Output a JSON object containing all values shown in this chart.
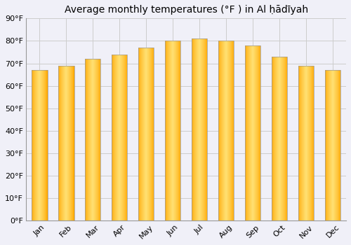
{
  "title": "Average monthly temperatures (°F ) in Al ḥādīyah",
  "months": [
    "Jan",
    "Feb",
    "Mar",
    "Apr",
    "May",
    "Jun",
    "Jul",
    "Aug",
    "Sep",
    "Oct",
    "Nov",
    "Dec"
  ],
  "values": [
    67,
    69,
    72,
    74,
    77,
    80,
    81,
    80,
    78,
    73,
    69,
    67
  ],
  "bar_color_left": "#FFA500",
  "bar_color_center": "#FFDD66",
  "bar_border_color": "#999999",
  "ylim": [
    0,
    90
  ],
  "yticks": [
    0,
    10,
    20,
    30,
    40,
    50,
    60,
    70,
    80,
    90
  ],
  "ytick_labels": [
    "0°F",
    "10°F",
    "20°F",
    "30°F",
    "40°F",
    "50°F",
    "60°F",
    "70°F",
    "80°F",
    "90°F"
  ],
  "background_color": "#f0f0f8",
  "plot_bg_color": "#f0f0f8",
  "grid_color": "#cccccc",
  "title_fontsize": 10,
  "tick_fontsize": 8,
  "bar_width": 0.6
}
